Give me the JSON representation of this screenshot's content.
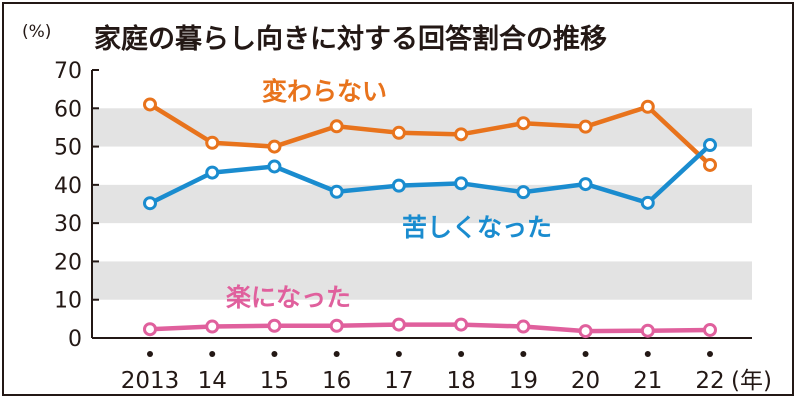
{
  "chart_data": {
    "type": "line",
    "title": "家庭の暮らし向きに対する回答割合の推移",
    "y_unit": "(%)",
    "x_unit": "(年)",
    "categories": [
      "2013",
      "14",
      "15",
      "16",
      "17",
      "18",
      "19",
      "20",
      "21",
      "22"
    ],
    "ylim": [
      0,
      70
    ],
    "yticks": [
      "0",
      "10",
      "20",
      "30",
      "40",
      "50",
      "60",
      "70"
    ],
    "grid": "alternating horizontal gray bands",
    "series": [
      {
        "name": "変わらない",
        "color": "#e8731c",
        "values": [
          61.0,
          51.0,
          50.0,
          55.3,
          53.6,
          53.2,
          56.1,
          55.2,
          60.4,
          45.2
        ]
      },
      {
        "name": "苦しくなった",
        "color": "#1a8ccf",
        "values": [
          35.2,
          43.2,
          44.8,
          38.2,
          39.8,
          40.4,
          38.1,
          40.2,
          35.3,
          50.4
        ]
      },
      {
        "name": "楽になった",
        "color": "#e0609d",
        "values": [
          2.3,
          3.0,
          3.2,
          3.2,
          3.5,
          3.5,
          3.0,
          1.8,
          1.9,
          2.1
        ]
      }
    ],
    "band_color": "#e3e3e3",
    "axis_color": "#231815"
  }
}
